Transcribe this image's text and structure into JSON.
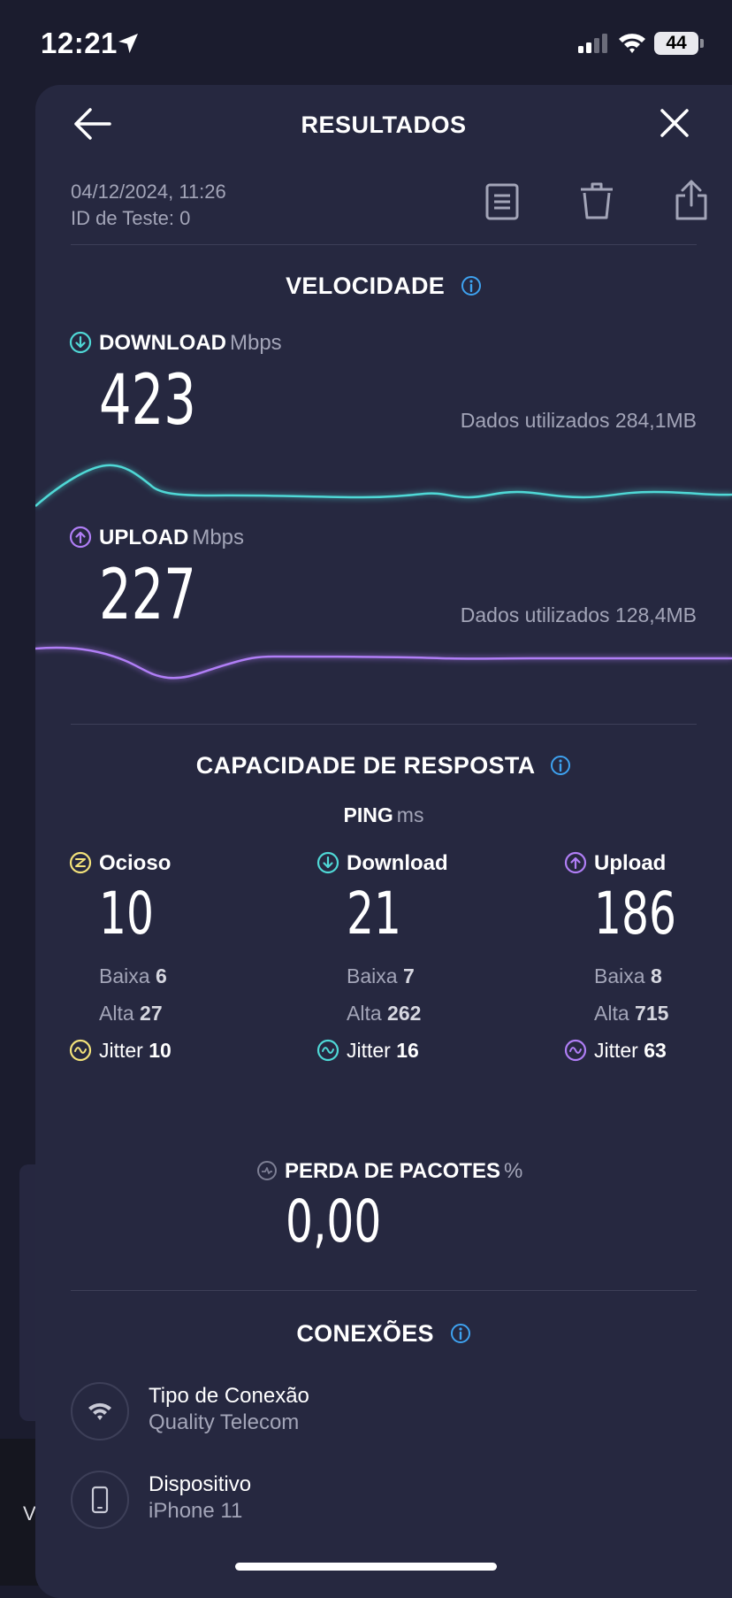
{
  "status_bar": {
    "time": "12:21",
    "battery": "44"
  },
  "header": {
    "title": "RESULTADOS"
  },
  "meta": {
    "date": "04/12/2024, 11:26",
    "test_id": "ID de Teste: 0"
  },
  "velocidade": {
    "title": "VELOCIDADE",
    "download": {
      "label": "DOWNLOAD",
      "unit": "Mbps",
      "value": "423",
      "data_used": "Dados utilizados 284,1MB",
      "color": "#4fd8d6"
    },
    "upload": {
      "label": "UPLOAD",
      "unit": "Mbps",
      "value": "227",
      "data_used": "Dados utilizados 128,4MB",
      "color": "#b07ef6"
    }
  },
  "resposta": {
    "title": "CAPACIDADE DE RESPOSTA",
    "ping_label": "PING",
    "ping_unit": "ms",
    "columns": [
      {
        "label": "Ocioso",
        "value": "10",
        "low_label": "Baixa",
        "low": "6",
        "high_label": "Alta",
        "high": "27",
        "jitter_label": "Jitter",
        "jitter": "10",
        "color": "#f3e27a"
      },
      {
        "label": "Download",
        "value": "21",
        "low_label": "Baixa",
        "low": "7",
        "high_label": "Alta",
        "high": "262",
        "jitter_label": "Jitter",
        "jitter": "16",
        "color": "#4fd8d6"
      },
      {
        "label": "Upload",
        "value": "186",
        "low_label": "Baixa",
        "low": "8",
        "high_label": "Alta",
        "high": "715",
        "jitter_label": "Jitter",
        "jitter": "63",
        "color": "#b07ef6"
      }
    ],
    "packet_loss": {
      "label": "PERDA DE PACOTES",
      "unit": "%",
      "value": "0,00"
    }
  },
  "conexoes": {
    "title": "CONEXÕES",
    "items": [
      {
        "title": "Tipo de Conexão",
        "value": "Quality Telecom",
        "icon": "wifi-icon"
      },
      {
        "title": "Dispositivo",
        "value": "iPhone 11",
        "icon": "phone-icon"
      }
    ]
  },
  "background": {
    "partial_text": "V"
  }
}
